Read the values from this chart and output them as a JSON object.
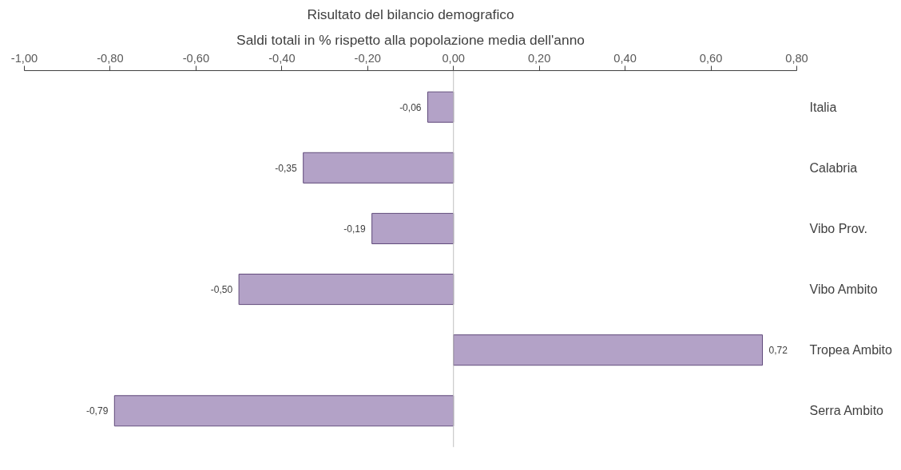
{
  "chart_data": {
    "type": "bar",
    "orientation": "horizontal",
    "title": "Risultato del bilancio demografico",
    "subtitle": "Saldi totali in % rispetto alla popolazione media dell'anno",
    "categories": [
      "Italia",
      "Calabria",
      "Vibo Prov.",
      "Vibo Ambito",
      "Tropea Ambito",
      "Serra Ambito"
    ],
    "values": [
      -0.06,
      -0.35,
      -0.19,
      -0.5,
      0.72,
      -0.79
    ],
    "value_labels": [
      "-0,06",
      "-0,35",
      "-0,19",
      "-0,50",
      "0,72",
      "-0,79"
    ],
    "color": "#b3a2c7",
    "xlim": [
      -1.0,
      0.8
    ],
    "xticks": [
      {
        "value": -1.0,
        "label": "-1,00"
      },
      {
        "value": -0.8,
        "label": "-0,80"
      },
      {
        "value": -0.6,
        "label": "-0,60"
      },
      {
        "value": -0.4,
        "label": "-0,40"
      },
      {
        "value": -0.2,
        "label": "-0,20"
      },
      {
        "value": 0.0,
        "label": "0,00"
      },
      {
        "value": 0.2,
        "label": "0,20"
      },
      {
        "value": 0.4,
        "label": "0,40"
      },
      {
        "value": 0.6,
        "label": "0,60"
      },
      {
        "value": 0.8,
        "label": "0,80"
      }
    ],
    "ref_lines": [
      {
        "axis": "x",
        "value": 0,
        "color": "#bfbfbf"
      }
    ]
  }
}
